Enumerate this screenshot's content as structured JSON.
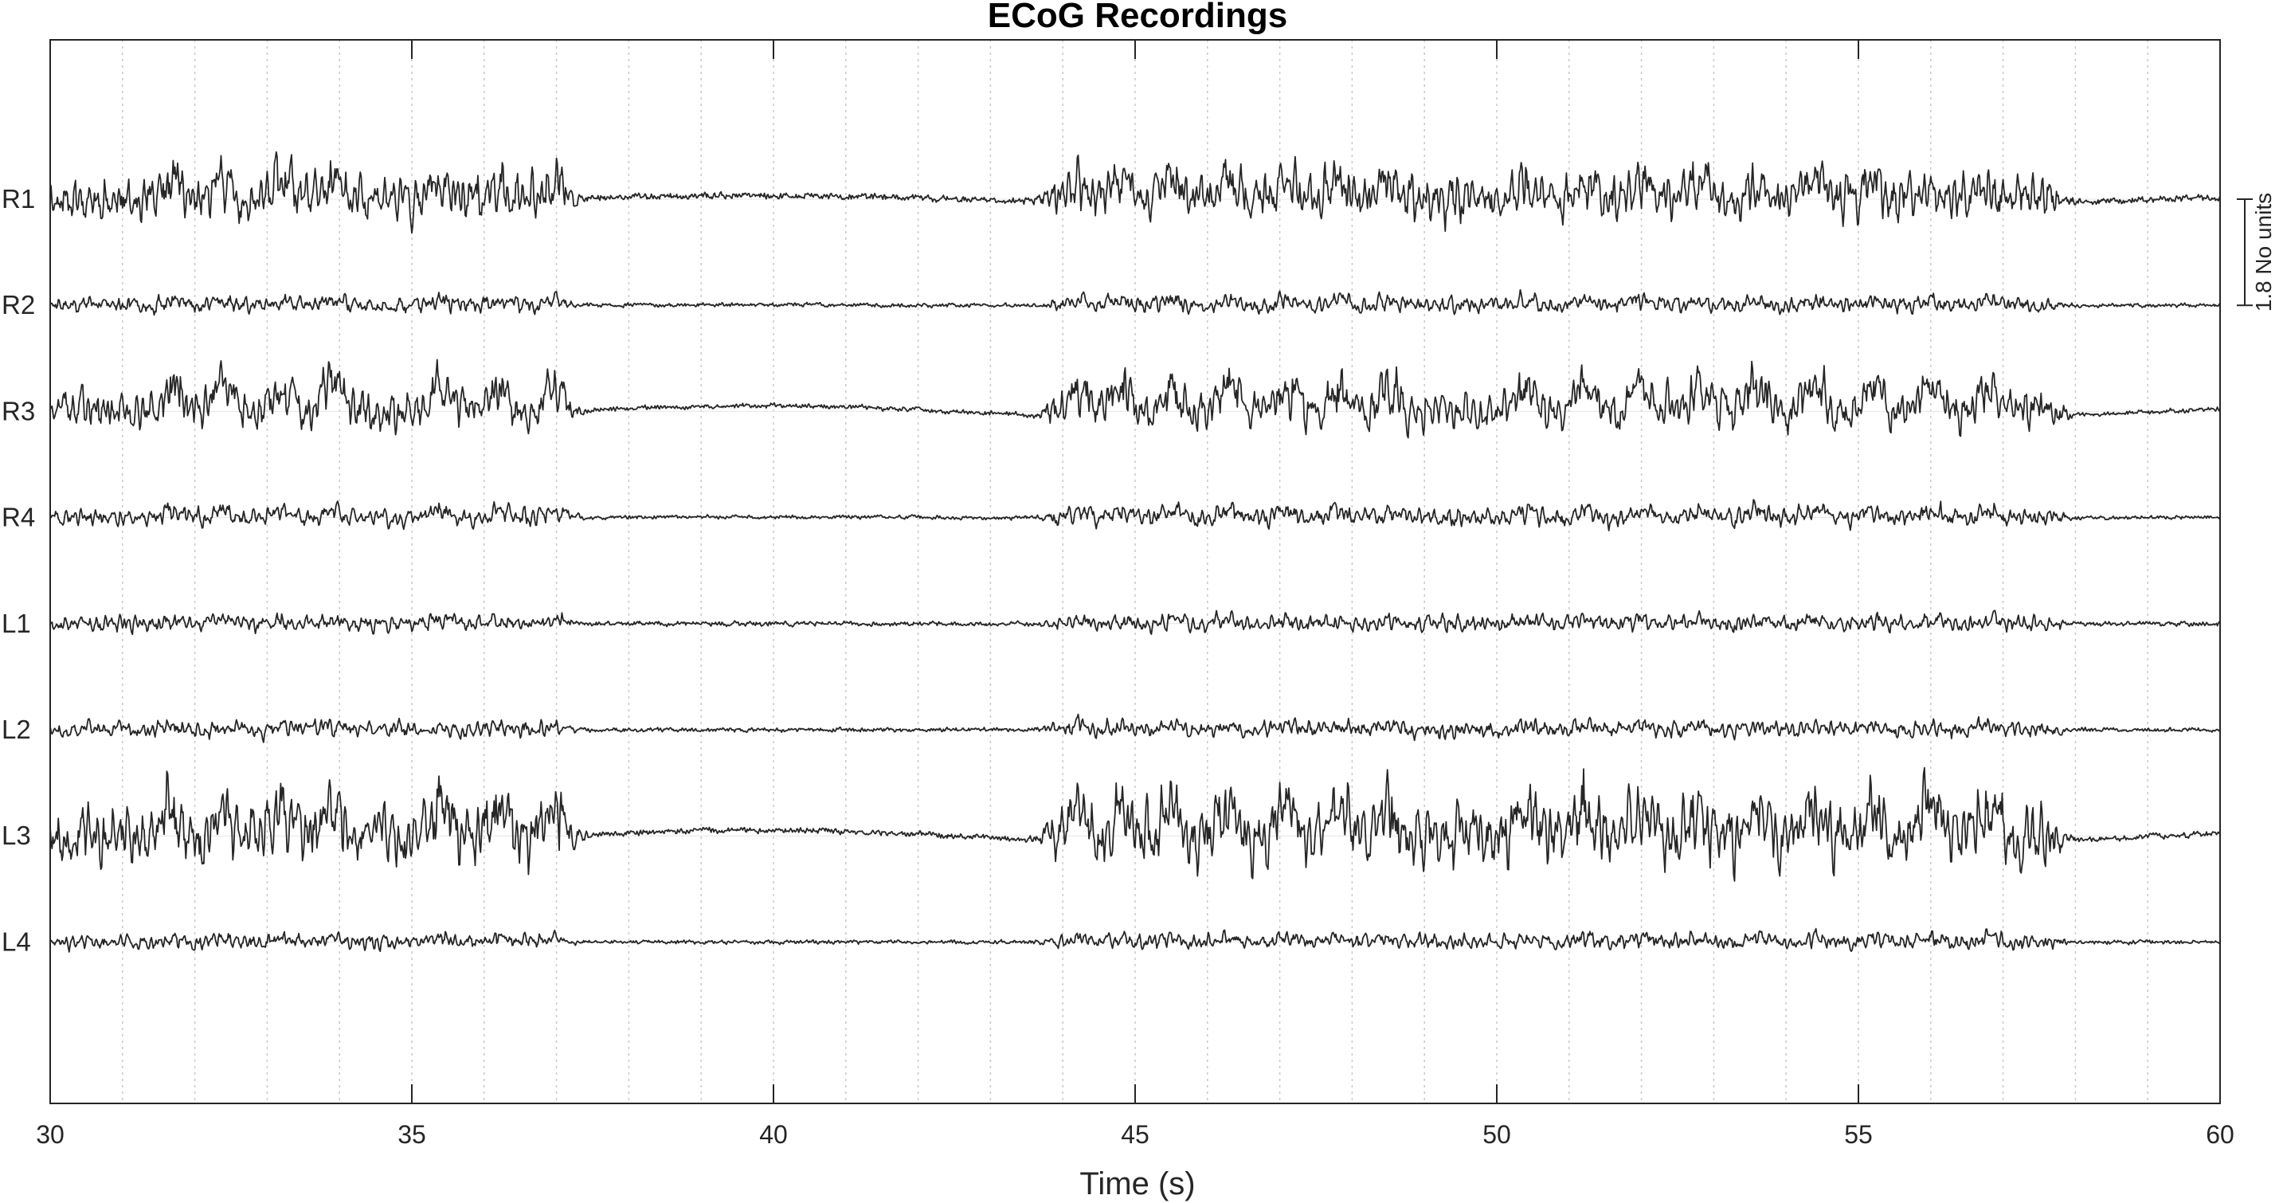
{
  "chart_data": {
    "type": "line",
    "title": "ECoG Recordings",
    "xlabel": "Time (s)",
    "ylabel": "",
    "xlim": [
      30,
      60
    ],
    "x_ticks": [
      30,
      35,
      40,
      45,
      50,
      55,
      60
    ],
    "x_tick_labels": [
      "30",
      "35",
      "40",
      "45",
      "50",
      "55",
      "60"
    ],
    "minor_grid_step": 1,
    "grid": true,
    "line_color": "#262626",
    "grid_color": "#c8c8c8",
    "channel_spacing": 1.8,
    "scale_bar": {
      "value": 1.8,
      "label": "1.8 No units"
    },
    "active_intervals": [
      [
        30,
        37.2
      ],
      [
        43.8,
        57.8
      ]
    ],
    "burst_onsets": [
      31.5,
      32.2,
      33.0,
      33.7,
      35.2,
      36.0,
      36.8,
      44.0,
      44.6,
      45.3,
      46.1,
      46.9,
      47.6,
      48.3,
      50.2,
      51.0,
      51.8,
      52.6,
      53.4,
      54.2,
      55.0,
      55.8,
      56.6
    ],
    "channels": [
      {
        "name": "R1",
        "offset": 0,
        "amplitude": 0.42,
        "envelope_noise": 0.035,
        "slow_wave": 0.06,
        "burst_gain": 0.28,
        "seed": 11
      },
      {
        "name": "R2",
        "offset": -1,
        "amplitude": 0.14,
        "envelope_noise": 0.02,
        "slow_wave": 0.01,
        "burst_gain": 0.08,
        "seed": 23
      },
      {
        "name": "R3",
        "offset": -2,
        "amplitude": 0.36,
        "envelope_noise": 0.025,
        "slow_wave": 0.1,
        "burst_gain": 0.42,
        "seed": 37
      },
      {
        "name": "R4",
        "offset": -3,
        "amplitude": 0.16,
        "envelope_noise": 0.02,
        "slow_wave": 0.01,
        "burst_gain": 0.1,
        "seed": 41
      },
      {
        "name": "L1",
        "offset": -4,
        "amplitude": 0.14,
        "envelope_noise": 0.025,
        "slow_wave": 0.0,
        "burst_gain": 0.06,
        "seed": 53
      },
      {
        "name": "L2",
        "offset": -5,
        "amplitude": 0.14,
        "envelope_noise": 0.022,
        "slow_wave": 0.0,
        "burst_gain": 0.06,
        "seed": 67
      },
      {
        "name": "L3",
        "offset": -6,
        "amplitude": 0.55,
        "envelope_noise": 0.03,
        "slow_wave": 0.1,
        "burst_gain": 0.45,
        "seed": 79
      },
      {
        "name": "L4",
        "offset": -7,
        "amplitude": 0.13,
        "envelope_noise": 0.02,
        "slow_wave": 0.0,
        "burst_gain": 0.06,
        "seed": 83
      }
    ]
  }
}
